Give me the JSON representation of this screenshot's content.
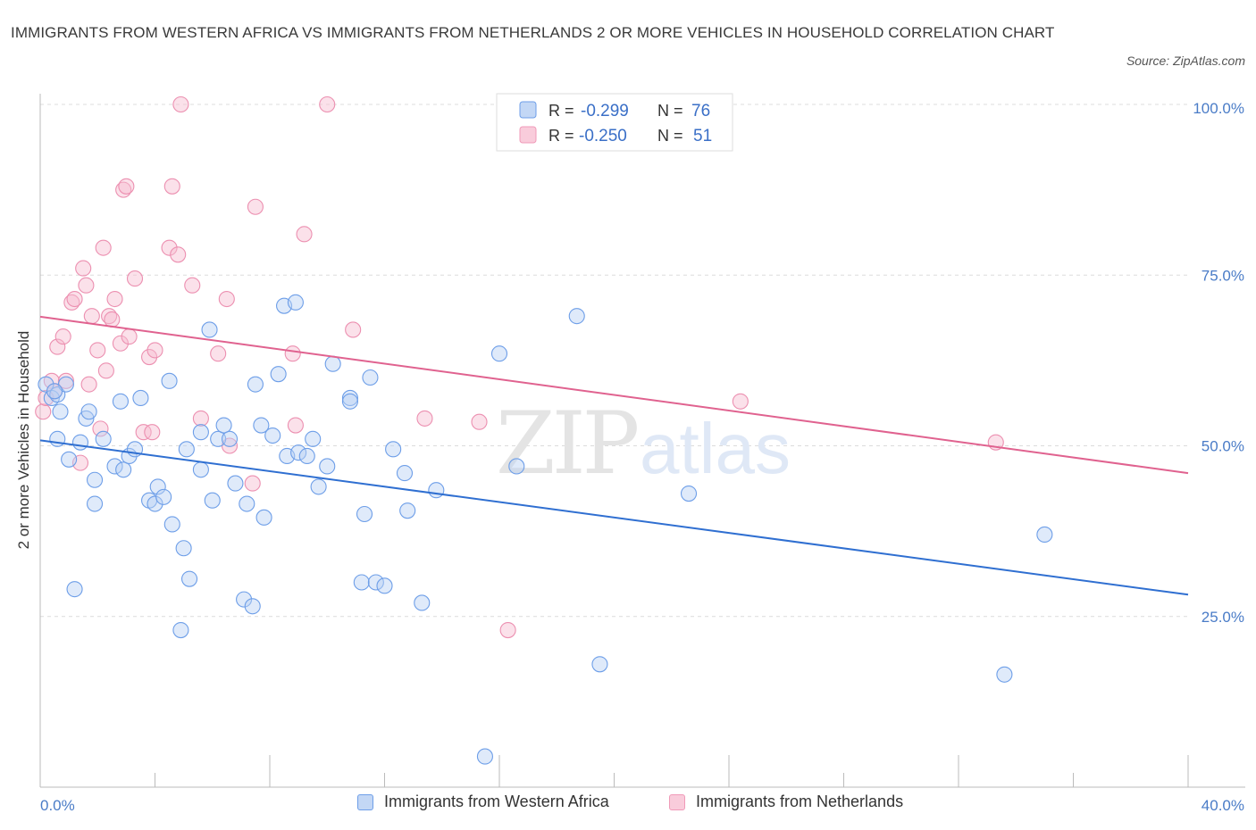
{
  "title": "IMMIGRANTS FROM WESTERN AFRICA VS IMMIGRANTS FROM NETHERLANDS 2 OR MORE VEHICLES IN HOUSEHOLD CORRELATION CHART",
  "source": "Source: ZipAtlas.com",
  "watermark": {
    "zip": "ZIP",
    "atlas": "atlas"
  },
  "colors": {
    "blue": "#6d9ee8",
    "blue_line": "#2f6fd1",
    "pink": "#f09ab8",
    "pink_line": "#e0628f",
    "tick": "#4a7cc7"
  },
  "chart_data": {
    "type": "scatter",
    "title": "IMMIGRANTS FROM WESTERN AFRICA VS IMMIGRANTS FROM NETHERLANDS 2 OR MORE VEHICLES IN HOUSEHOLD CORRELATION CHART",
    "xlabel": "",
    "ylabel": "2 or more Vehicles in Household",
    "xlim": [
      0,
      40
    ],
    "ylim": [
      0,
      100
    ],
    "x_tick_labels": [
      "0.0%",
      "40.0%"
    ],
    "y_tick_labels": [
      "100.0%",
      "75.0%",
      "50.0%",
      "25.0%"
    ],
    "y_ticks": [
      100,
      75,
      50,
      25
    ],
    "grid": true,
    "legend_position": "top-center",
    "stats": [
      {
        "r_label": "R =",
        "r": "-0.299",
        "n_label": "N =",
        "n": "76"
      },
      {
        "r_label": "R =",
        "r": "-0.250",
        "n_label": "N =",
        "n": "51"
      }
    ],
    "series": [
      {
        "name": "Immigrants from Western Africa",
        "color": "#6d9ee8",
        "trend": [
          [
            0,
            50.8
          ],
          [
            40,
            28.2
          ]
        ],
        "points": [
          [
            0.2,
            59
          ],
          [
            0.4,
            57
          ],
          [
            0.6,
            57.5
          ],
          [
            0.7,
            55
          ],
          [
            0.6,
            51
          ],
          [
            1.0,
            48
          ],
          [
            1.4,
            50.5
          ],
          [
            1.6,
            54
          ],
          [
            1.7,
            55
          ],
          [
            2.2,
            51
          ],
          [
            1.9,
            45
          ],
          [
            1.9,
            41.5
          ],
          [
            2.6,
            47
          ],
          [
            2.9,
            46.5
          ],
          [
            2.8,
            56.5
          ],
          [
            3.1,
            48.5
          ],
          [
            3.3,
            49.5
          ],
          [
            3.5,
            57
          ],
          [
            3.8,
            42
          ],
          [
            4.0,
            41.5
          ],
          [
            4.1,
            44
          ],
          [
            4.3,
            42.5
          ],
          [
            4.5,
            59.5
          ],
          [
            4.6,
            38.5
          ],
          [
            5.0,
            35
          ],
          [
            5.1,
            49.5
          ],
          [
            5.2,
            30.5
          ],
          [
            5.6,
            46.5
          ],
          [
            5.6,
            52
          ],
          [
            5.9,
            67
          ],
          [
            6.0,
            42
          ],
          [
            6.2,
            51
          ],
          [
            6.4,
            53
          ],
          [
            6.6,
            51
          ],
          [
            6.8,
            44.5
          ],
          [
            7.2,
            41.5
          ],
          [
            7.1,
            27.5
          ],
          [
            7.4,
            26.5
          ],
          [
            7.5,
            59
          ],
          [
            7.7,
            53
          ],
          [
            7.8,
            39.5
          ],
          [
            8.1,
            51.5
          ],
          [
            8.3,
            60.5
          ],
          [
            8.5,
            70.5
          ],
          [
            8.6,
            48.5
          ],
          [
            8.9,
            71
          ],
          [
            9.0,
            49
          ],
          [
            9.3,
            48.5
          ],
          [
            9.5,
            51
          ],
          [
            9.7,
            44
          ],
          [
            10.0,
            47
          ],
          [
            10.2,
            62
          ],
          [
            10.8,
            57
          ],
          [
            10.8,
            56.5
          ],
          [
            11.2,
            30
          ],
          [
            11.3,
            40
          ],
          [
            11.5,
            60
          ],
          [
            11.7,
            30
          ],
          [
            12.0,
            29.5
          ],
          [
            12.3,
            49.5
          ],
          [
            12.7,
            46
          ],
          [
            12.8,
            40.5
          ],
          [
            13.3,
            27
          ],
          [
            13.8,
            43.5
          ],
          [
            16.0,
            63.5
          ],
          [
            16.6,
            47
          ],
          [
            18.7,
            69
          ],
          [
            19.5,
            18
          ],
          [
            15.5,
            4.5
          ],
          [
            22.6,
            43
          ],
          [
            35.0,
            37
          ],
          [
            33.6,
            16.5
          ],
          [
            1.2,
            29
          ],
          [
            4.9,
            23
          ],
          [
            0.9,
            59
          ],
          [
            0.5,
            58
          ]
        ]
      },
      {
        "name": "Immigrants from Netherlands",
        "color": "#f09ab8",
        "trend": [
          [
            0,
            68.9
          ],
          [
            40,
            46
          ]
        ],
        "points": [
          [
            0.1,
            55
          ],
          [
            0.4,
            59.5
          ],
          [
            0.5,
            58
          ],
          [
            0.6,
            64.5
          ],
          [
            0.8,
            66
          ],
          [
            0.9,
            59.5
          ],
          [
            1.1,
            71
          ],
          [
            1.2,
            71.5
          ],
          [
            1.4,
            47.5
          ],
          [
            1.5,
            76
          ],
          [
            1.6,
            73.5
          ],
          [
            1.7,
            59
          ],
          [
            1.8,
            69
          ],
          [
            2.0,
            64
          ],
          [
            2.1,
            52.5
          ],
          [
            2.2,
            79
          ],
          [
            2.3,
            61
          ],
          [
            2.4,
            69
          ],
          [
            2.5,
            68.5
          ],
          [
            2.6,
            71.5
          ],
          [
            2.8,
            65
          ],
          [
            2.9,
            87.5
          ],
          [
            3.0,
            88
          ],
          [
            3.1,
            66
          ],
          [
            3.3,
            74.5
          ],
          [
            3.6,
            52
          ],
          [
            3.8,
            63
          ],
          [
            4.0,
            64
          ],
          [
            4.5,
            79
          ],
          [
            4.6,
            88
          ],
          [
            4.8,
            78
          ],
          [
            4.9,
            100
          ],
          [
            5.3,
            73.5
          ],
          [
            5.6,
            54
          ],
          [
            6.2,
            63.5
          ],
          [
            6.5,
            71.5
          ],
          [
            6.6,
            50
          ],
          [
            7.4,
            44.5
          ],
          [
            7.5,
            85
          ],
          [
            8.8,
            63.5
          ],
          [
            8.9,
            53
          ],
          [
            9.2,
            81
          ],
          [
            10.0,
            100
          ],
          [
            10.9,
            67
          ],
          [
            13.4,
            54
          ],
          [
            15.3,
            53.5
          ],
          [
            16.3,
            23
          ],
          [
            24.4,
            56.5
          ],
          [
            33.3,
            50.5
          ],
          [
            3.9,
            52
          ],
          [
            0.2,
            57
          ]
        ]
      }
    ]
  }
}
